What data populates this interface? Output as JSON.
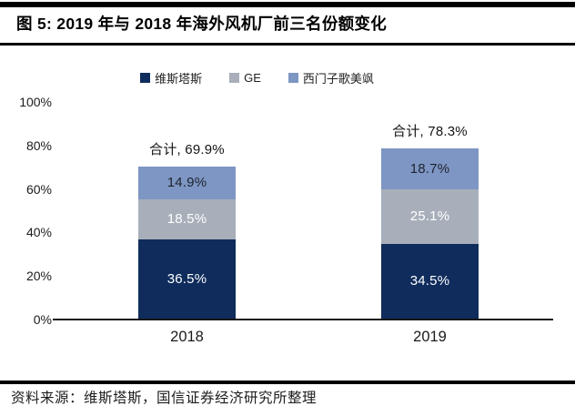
{
  "figure": {
    "title": "图 5: 2019 年与 2018 年海外风机厂前三名份额变化",
    "source": "资料来源：维斯塔斯，国信证券经济研究所整理"
  },
  "chart_data": {
    "type": "bar",
    "stacked": true,
    "grid": false,
    "legend_position": "top",
    "categories": [
      "2018",
      "2019"
    ],
    "series": [
      {
        "name": "维斯塔斯",
        "values": [
          36.5,
          34.5
        ],
        "labels": [
          "36.5%",
          "34.5%"
        ],
        "color": "#0f2c5c",
        "label_color": "#ffffff"
      },
      {
        "name": "GE",
        "values": [
          18.5,
          25.1
        ],
        "labels": [
          "18.5%",
          "25.1%"
        ],
        "color": "#a8afba",
        "label_color": "#ffffff"
      },
      {
        "name": "西门子歌美飒",
        "values": [
          14.9,
          18.7
        ],
        "labels": [
          "14.9%",
          "18.7%"
        ],
        "color": "#7e96c3",
        "label_color": "#1f2430"
      }
    ],
    "totals": [
      {
        "value": 69.9,
        "label": "合计, 69.9%"
      },
      {
        "value": 78.3,
        "label": "合计, 78.3%"
      }
    ],
    "xlabel": "",
    "ylabel": "",
    "ylim": [
      0,
      100
    ],
    "yticks": [
      {
        "value": 0,
        "label": "0%"
      },
      {
        "value": 20,
        "label": "20%"
      },
      {
        "value": 40,
        "label": "40%"
      },
      {
        "value": 60,
        "label": "60%"
      },
      {
        "value": 80,
        "label": "80%"
      },
      {
        "value": 100,
        "label": "100%"
      }
    ]
  }
}
